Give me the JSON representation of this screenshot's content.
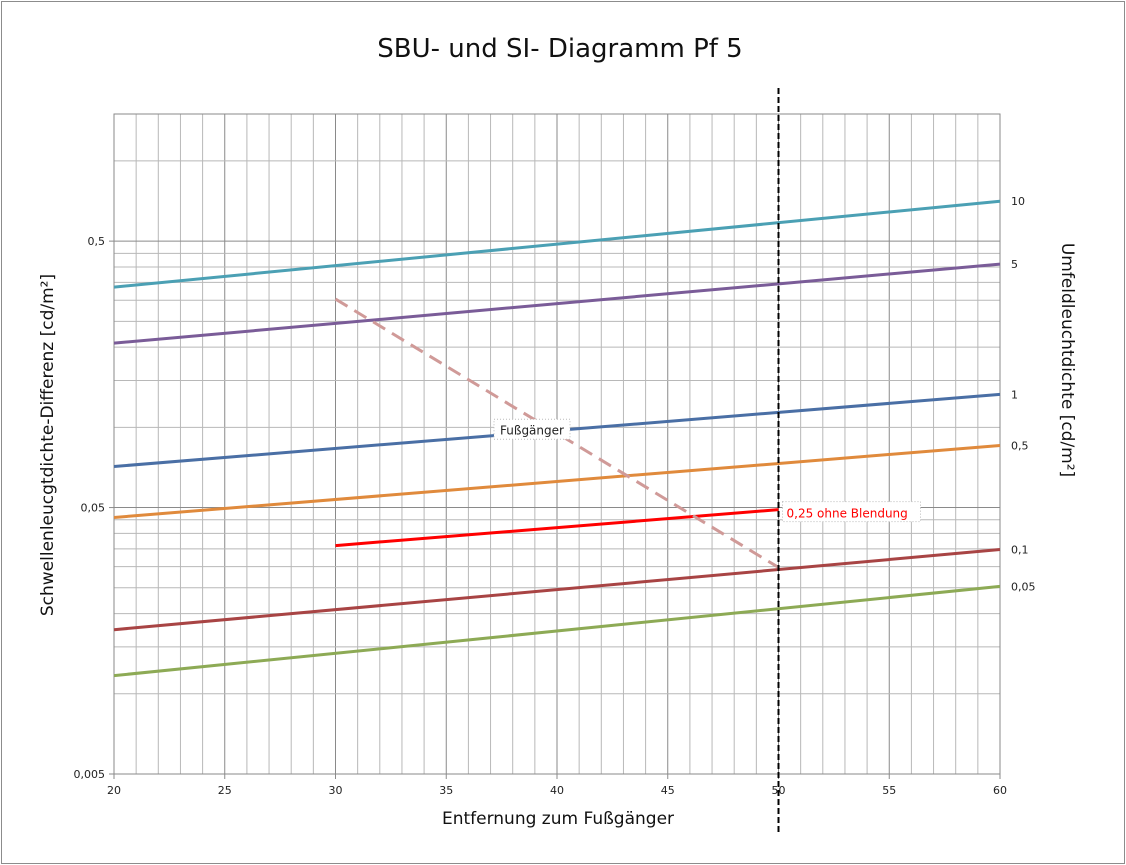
{
  "chart_data": {
    "type": "line",
    "title": "SBU- und SI- Diagramm Pf 5",
    "xlabel": "Entfernung  zum Fußgänger",
    "ylabel": "Schwellenleucgtdichte-Differenz  [cd/m²]",
    "y2label": "Umfeldleuchtdichte  [cd/m²]",
    "xlim": [
      20,
      60
    ],
    "ylim": [
      0.005,
      1.5
    ],
    "yscale": "log",
    "grid": true,
    "xticks": [
      "20",
      "25",
      "30",
      "35",
      "40",
      "45",
      "50",
      "55",
      "60"
    ],
    "xtick_values": [
      20,
      25,
      30,
      35,
      40,
      45,
      50,
      55,
      60
    ],
    "yticks": [
      "0,005",
      "0,05",
      "0,5"
    ],
    "ytick_values": [
      0.005,
      0.05,
      0.5
    ],
    "series": [
      {
        "name": "10",
        "label": "10",
        "color": "#4BA0B4",
        "x": [
          20,
          60
        ],
        "y": [
          0.336,
          0.706
        ]
      },
      {
        "name": "5",
        "label": "5",
        "color": "#7A5C98",
        "x": [
          20,
          60
        ],
        "y": [
          0.207,
          0.41
        ]
      },
      {
        "name": "1",
        "label": "1",
        "color": "#4A6FA5",
        "x": [
          20,
          60
        ],
        "y": [
          0.0713,
          0.133
        ]
      },
      {
        "name": "0,5",
        "label": "0,5",
        "color": "#E08A3C",
        "x": [
          20,
          60
        ],
        "y": [
          0.0459,
          0.0855
        ]
      },
      {
        "name": "0,25 ohne Blendung",
        "label": "0,25 ohne Blendung",
        "color": "#FF0000",
        "x": [
          30,
          50
        ],
        "y": [
          0.036,
          0.0491
        ]
      },
      {
        "name": "0,1",
        "label": "0,1",
        "color": "#A84444",
        "x": [
          20,
          60
        ],
        "y": [
          0.0174,
          0.0348
        ]
      },
      {
        "name": "0,05",
        "label": "0,05",
        "color": "#8DAA55",
        "x": [
          20,
          60
        ],
        "y": [
          0.0117,
          0.0253
        ]
      },
      {
        "name": "Fußgänger",
        "label": "Fußgänger",
        "color": "#D09A98",
        "dashed": true,
        "x": [
          30,
          50
        ],
        "y": [
          0.303,
          0.0298
        ]
      }
    ],
    "vertical_marker": {
      "x": 50,
      "color": "#000000",
      "dashed": true
    }
  }
}
